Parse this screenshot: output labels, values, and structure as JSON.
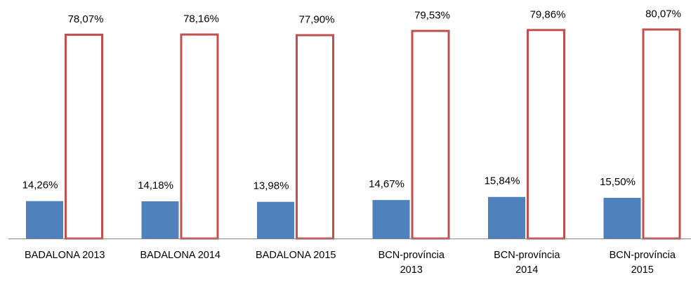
{
  "chart_data": {
    "type": "bar",
    "categories": [
      "BADALONA 2013",
      "BADALONA 2014",
      "BADALONA 2015",
      "BCN-província\n2013",
      "BCN-província\n2014",
      "BCN-província\n2015"
    ],
    "series": [
      {
        "color": "#4f81bd",
        "values": [
          14.26,
          14.18,
          13.98,
          14.67,
          15.84,
          15.5
        ],
        "value_labels": [
          "14,26%",
          "14,18%",
          "13,98%",
          "14,67%",
          "15,84%",
          "15,50%"
        ]
      },
      {
        "color": "#c0504d",
        "values": [
          78.07,
          78.16,
          77.9,
          79.53,
          79.86,
          80.07
        ],
        "value_labels": [
          "78,07%",
          "78,16%",
          "77,90%",
          "79,53%",
          "79,86%",
          "80,07%"
        ]
      }
    ]
  }
}
